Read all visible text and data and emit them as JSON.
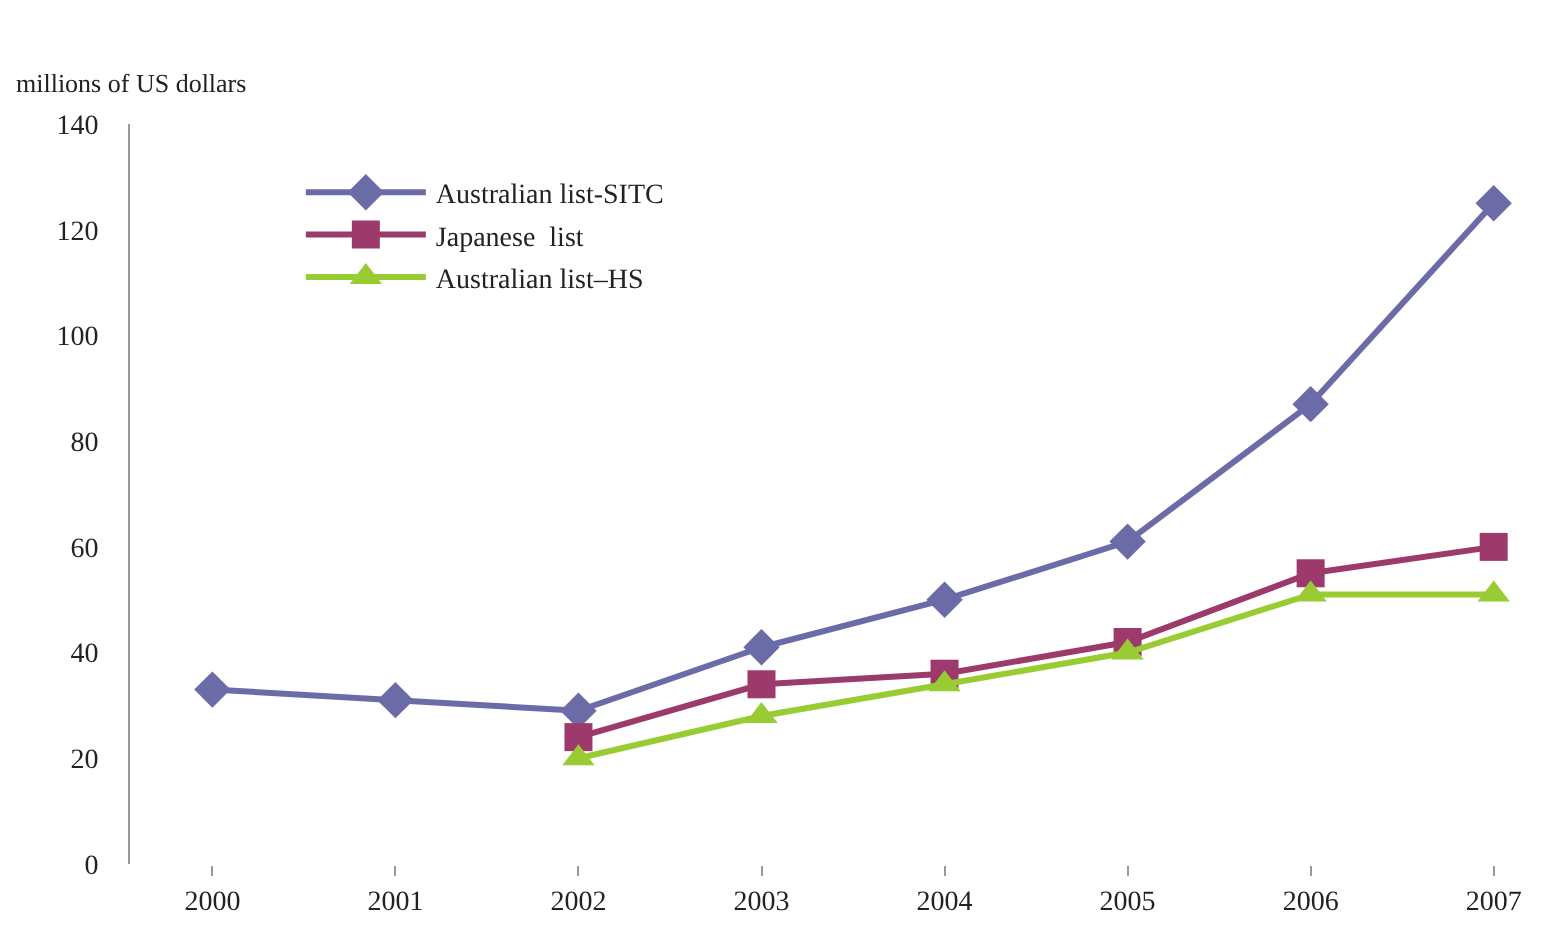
{
  "chart_data": {
    "type": "line",
    "ylabel": "millions of US dollars",
    "categories": [
      "2000",
      "2001",
      "2002",
      "2003",
      "2004",
      "2005",
      "2006",
      "2007"
    ],
    "series": [
      {
        "name": "Australian list-SITC",
        "color": "#6b6ba8",
        "marker": "diamond",
        "values": [
          33,
          31,
          29,
          41,
          50,
          61,
          87,
          125
        ]
      },
      {
        "name": "Japanese  list",
        "color": "#9b3a6b",
        "marker": "square",
        "values": [
          null,
          null,
          24,
          34,
          36,
          42,
          55,
          60
        ]
      },
      {
        "name": "Australian list–HS",
        "color": "#99cc33",
        "marker": "triangle",
        "values": [
          null,
          null,
          20,
          28,
          34,
          40,
          51,
          51
        ]
      }
    ],
    "ylim": [
      0,
      140
    ],
    "yticks": [
      0,
      20,
      40,
      60,
      80,
      100,
      120,
      140
    ],
    "legend": "top left",
    "line_style": "solid"
  }
}
